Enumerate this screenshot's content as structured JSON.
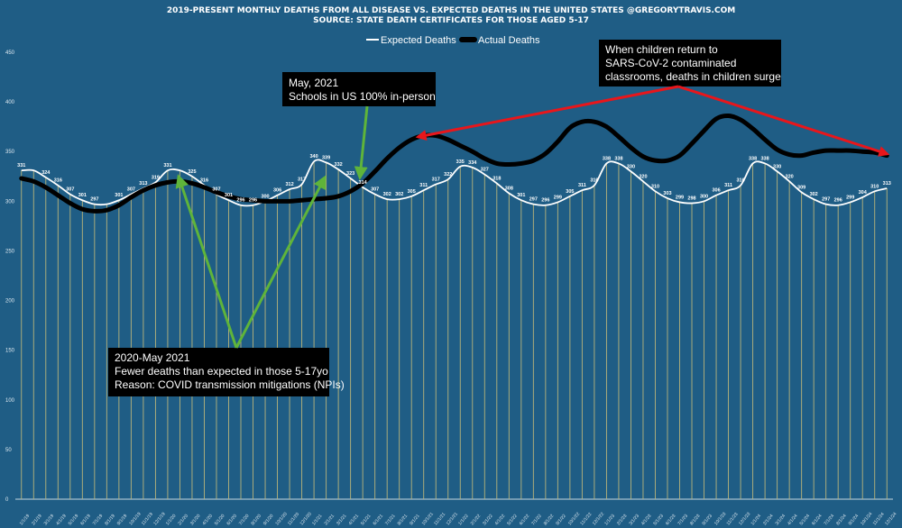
{
  "header": {
    "title": "2019-PRESENT MONTHLY DEATHS FROM ALL DISEASE VS. EXPECTED DEATHS IN THE UNITED STATES @GREGORYTRAVIS.COM",
    "subtitle": "SOURCE: STATE DEATH CERTIFICATES FOR THOSE AGED 5-17"
  },
  "annotations": {
    "schools": [
      "May, 2021",
      "Schools in US 100% in-person"
    ],
    "mitigation": [
      "2020-May 2021",
      "Fewer deaths than expected in those 5-17yo",
      "Reason: COVID transmission mitigations (NPIs)"
    ],
    "surge": [
      "When children return to",
      "SARS-CoV-2 contaminated",
      "classrooms, deaths in children surge"
    ]
  },
  "colors": {
    "background": "#1f5d85",
    "expected": "#ffffff",
    "actual": "#000000",
    "bars": "#b8b47a",
    "green_arrow": "#5fb43a",
    "red_arrow": "#e8161b"
  },
  "chart_data": {
    "type": "line",
    "title": "2019-PRESENT MONTHLY DEATHS FROM ALL DISEASE VS. EXPECTED DEATHS IN THE UNITED STATES @GREGORYTRAVIS.COM",
    "subtitle": "SOURCE: STATE DEATH CERTIFICATES FOR THOSE AGED 5-17",
    "ylim": [
      0,
      450
    ],
    "yticks": [
      0,
      50,
      100,
      150,
      200,
      250,
      300,
      350,
      400,
      450
    ],
    "grid": "vertical lines at each month",
    "legend": "top-center",
    "x": [
      "1/1/19",
      "2/1/19",
      "3/1/19",
      "4/1/19",
      "5/1/19",
      "6/1/19",
      "7/1/19",
      "8/1/19",
      "9/1/19",
      "10/1/19",
      "11/1/19",
      "12/1/19",
      "1/1/20",
      "2/1/20",
      "3/1/20",
      "4/1/20",
      "5/1/20",
      "6/1/20",
      "7/1/20",
      "8/1/20",
      "9/1/20",
      "10/1/20",
      "11/1/20",
      "12/1/20",
      "1/1/21",
      "2/1/21",
      "3/1/21",
      "4/1/21",
      "5/1/21",
      "6/1/21",
      "7/1/21",
      "8/1/21",
      "9/1/21",
      "10/1/21",
      "11/1/21",
      "12/1/21",
      "1/1/22",
      "2/1/22",
      "3/1/22",
      "4/1/22",
      "5/1/22",
      "6/1/22",
      "7/1/22",
      "8/1/22",
      "9/1/22",
      "10/1/22",
      "11/1/22",
      "12/1/22",
      "1/1/23",
      "2/1/23",
      "3/1/23",
      "4/1/23",
      "5/1/23",
      "6/1/23",
      "7/1/23",
      "8/1/23",
      "9/1/23",
      "10/1/23",
      "11/1/23",
      "12/1/23",
      "1/1/24",
      "2/1/24",
      "3/1/24",
      "4/1/24",
      "5/1/24",
      "6/1/24",
      "7/1/24",
      "8/1/24",
      "9/1/24",
      "10/1/24",
      "11/1/24",
      "12/1/24"
    ],
    "series": [
      {
        "name": "Expected Deaths",
        "values": [
          331,
          331,
          324,
          316,
          307,
          301,
          297,
          297,
          301,
          307,
          313,
          319,
          331,
          331,
          325,
          316,
          307,
          301,
          296,
          296,
          300,
          306,
          312,
          317,
          340,
          339,
          332,
          323,
          314,
          307,
          302,
          302,
          305,
          311,
          317,
          322,
          335,
          334,
          327,
          318,
          308,
          301,
          297,
          296,
          299,
          305,
          311,
          316,
          338,
          338,
          330,
          320,
          310,
          303,
          299,
          298,
          300,
          306,
          311,
          316,
          338,
          338,
          330,
          320,
          309,
          302,
          297,
          296,
          299,
          304,
          310,
          313
        ]
      },
      {
        "name": "Actual Deaths",
        "values": [
          323,
          320,
          314,
          306,
          298,
          292,
          290,
          291,
          296,
          304,
          311,
          316,
          319,
          320,
          318,
          314,
          309,
          305,
          302,
          301,
          300,
          300,
          300,
          301,
          302,
          303,
          305,
          310,
          318,
          330,
          343,
          354,
          362,
          366,
          366,
          362,
          356,
          350,
          343,
          338,
          337,
          338,
          341,
          348,
          360,
          374,
          380,
          380,
          375,
          365,
          354,
          345,
          341,
          341,
          346,
          358,
          371,
          383,
          386,
          382,
          373,
          362,
          352,
          347,
          346,
          349,
          351,
          351,
          351,
          350,
          349,
          346
        ]
      }
    ],
    "data_labels": {
      "series": "Expected Deaths",
      "indices": [
        0,
        2,
        3,
        4,
        5,
        6,
        8,
        9,
        10,
        11,
        12,
        14,
        15,
        16,
        17,
        18,
        19,
        20,
        21,
        22,
        23,
        24,
        25,
        26,
        27,
        28,
        29,
        30,
        31,
        32,
        33,
        34,
        35,
        36,
        37,
        38,
        39,
        40,
        41,
        42,
        43,
        44,
        45,
        46,
        47,
        48,
        49,
        50,
        51,
        52,
        53,
        54,
        55,
        56,
        57,
        58,
        59,
        60,
        61,
        62,
        63,
        64,
        65,
        66,
        67,
        68,
        69,
        70,
        71
      ]
    }
  }
}
